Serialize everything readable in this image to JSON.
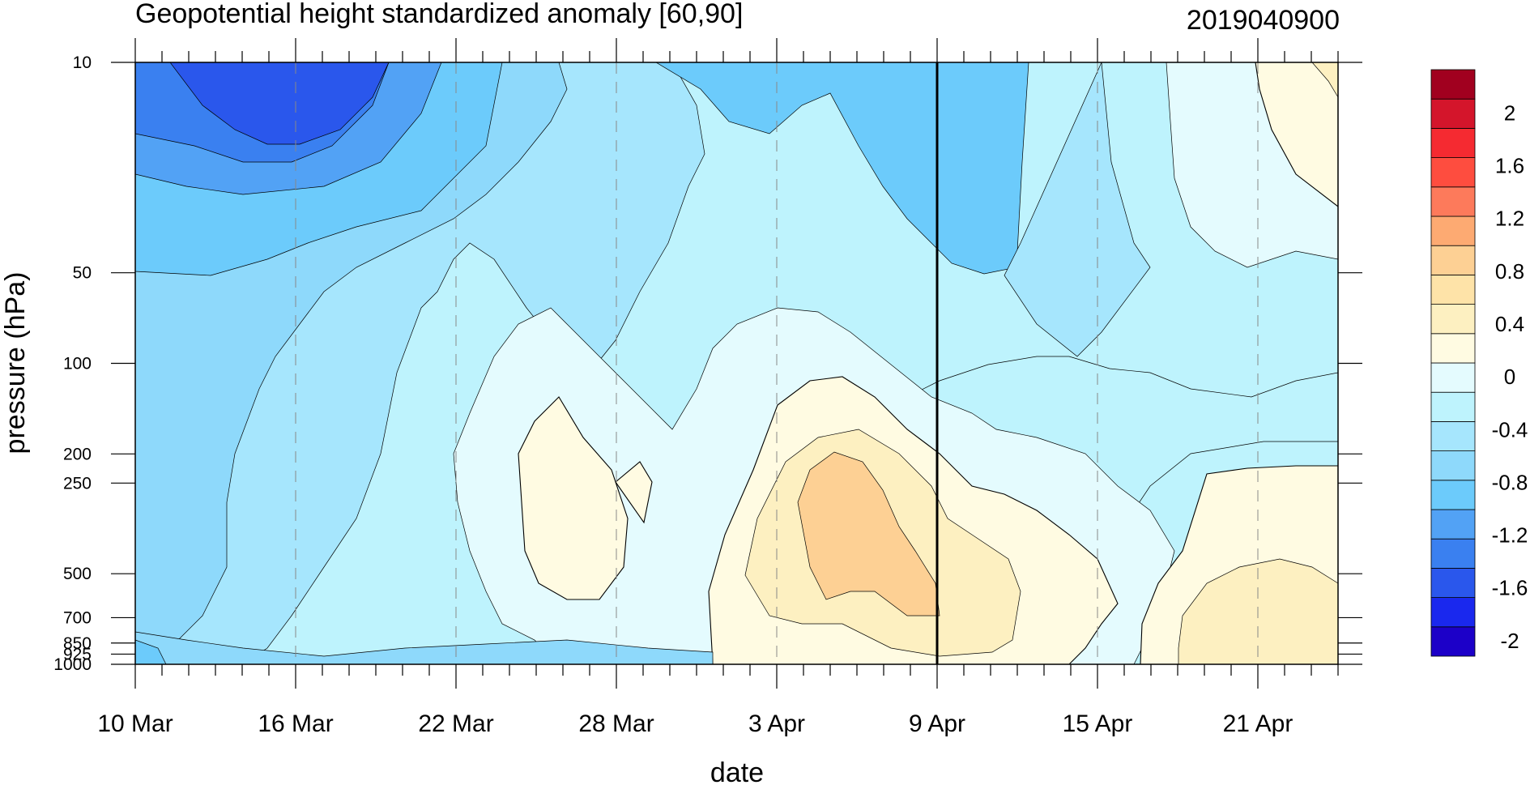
{
  "title": "Geopotential height standardized anomaly [60,90]",
  "init_label": "2019040900",
  "chart_data": {
    "type": "contour",
    "xlabel": "date",
    "ylabel": "pressure (hPa)",
    "x_tick_labels": [
      "10 Mar",
      "16 Mar",
      "22 Mar",
      "28 Mar",
      "3 Apr",
      "9 Apr",
      "15 Apr",
      "21 Apr"
    ],
    "x_range_days": [
      0,
      45
    ],
    "y_tick_labels": [
      "10",
      "50",
      "100",
      "200",
      "250",
      "500",
      "700",
      "850",
      "925",
      "1000"
    ],
    "y_scale": "log",
    "y_range_hPa": [
      10,
      1000
    ],
    "grid": "dashed vertical lines at date ticks",
    "current_date_line": "9 Apr",
    "levels": [
      -2,
      -1.8,
      -1.6,
      -1.4,
      -1.2,
      -1,
      -0.8,
      -0.6,
      -0.4,
      -0.2,
      0,
      0.2,
      0.4,
      0.6,
      0.8,
      1,
      1.2,
      1.4,
      1.6,
      1.8,
      2
    ],
    "colorbar_labels": [
      "2",
      "1.6",
      "1.2",
      "0.8",
      "0.4",
      "0",
      "-0.4",
      "-0.8",
      "-1.2",
      "-1.6",
      "-2"
    ],
    "colors": [
      "#1c00c8",
      "#1a28ee",
      "#2a57ec",
      "#3a80f0",
      "#52a2f5",
      "#6ccbfb",
      "#8ed9fb",
      "#a6e6fd",
      "#bef3fd",
      "#e4fbfe",
      "#fffbe2",
      "#fdf0c1",
      "#fee3a8",
      "#fdd094",
      "#fdaa72",
      "#fd7a5b",
      "#fe4d3f",
      "#f52a31",
      "#d4152b",
      "#a1001f"
    ]
  }
}
